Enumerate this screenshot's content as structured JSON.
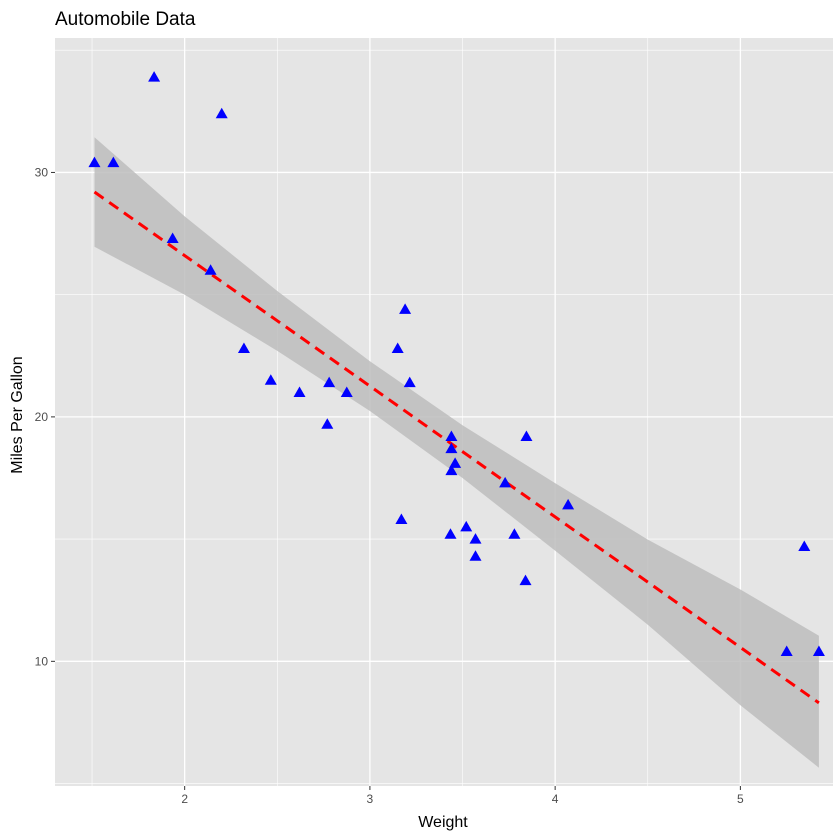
{
  "chart_data": {
    "type": "scatter",
    "title": "Automobile Data",
    "xlabel": "Weight",
    "ylabel": "Miles Per Gallon",
    "xlim": [
      1.3,
      5.5
    ],
    "ylim": [
      4.9,
      35.5
    ],
    "x_ticks": [
      2,
      3,
      4,
      5
    ],
    "x_tick_labels": [
      "2",
      "3",
      "4",
      "5"
    ],
    "y_ticks": [
      10,
      20,
      30
    ],
    "y_tick_labels": [
      "10",
      "20",
      "30"
    ],
    "grid": true,
    "legend": "none",
    "marker": "triangle",
    "colors": {
      "panel": "#e5e5e5",
      "grid": "#ffffff",
      "points": "#0000ff",
      "fit_line": "#ff0000",
      "ribbon": "#bdbdbd"
    },
    "points": [
      {
        "x": 1.513,
        "y": 30.4
      },
      {
        "x": 1.615,
        "y": 30.4
      },
      {
        "x": 1.835,
        "y": 33.9
      },
      {
        "x": 1.935,
        "y": 27.3
      },
      {
        "x": 2.14,
        "y": 26.0
      },
      {
        "x": 2.2,
        "y": 32.4
      },
      {
        "x": 2.32,
        "y": 22.8
      },
      {
        "x": 2.465,
        "y": 21.5
      },
      {
        "x": 2.62,
        "y": 21.0
      },
      {
        "x": 2.77,
        "y": 19.7
      },
      {
        "x": 2.78,
        "y": 21.4
      },
      {
        "x": 2.875,
        "y": 21.0
      },
      {
        "x": 3.15,
        "y": 22.8
      },
      {
        "x": 3.17,
        "y": 15.8
      },
      {
        "x": 3.19,
        "y": 24.4
      },
      {
        "x": 3.215,
        "y": 21.4
      },
      {
        "x": 3.435,
        "y": 15.2
      },
      {
        "x": 3.44,
        "y": 19.2
      },
      {
        "x": 3.44,
        "y": 18.7
      },
      {
        "x": 3.44,
        "y": 17.8
      },
      {
        "x": 3.46,
        "y": 18.1
      },
      {
        "x": 3.52,
        "y": 15.5
      },
      {
        "x": 3.57,
        "y": 15.0
      },
      {
        "x": 3.57,
        "y": 14.3
      },
      {
        "x": 3.73,
        "y": 17.3
      },
      {
        "x": 3.78,
        "y": 15.2
      },
      {
        "x": 3.84,
        "y": 13.3
      },
      {
        "x": 3.845,
        "y": 19.2
      },
      {
        "x": 4.07,
        "y": 16.4
      },
      {
        "x": 5.25,
        "y": 10.4
      },
      {
        "x": 5.345,
        "y": 14.7
      },
      {
        "x": 5.424,
        "y": 10.4
      }
    ],
    "fit": {
      "x": [
        1.513,
        2.0,
        2.5,
        3.0,
        3.5,
        4.0,
        4.5,
        5.0,
        5.424
      ],
      "y": [
        29.2,
        26.6,
        23.93,
        21.26,
        18.58,
        15.91,
        13.24,
        10.57,
        8.3
      ],
      "lower": [
        26.96,
        25.0,
        22.7,
        20.24,
        17.5,
        14.53,
        11.5,
        8.2,
        5.65
      ],
      "upper": [
        31.44,
        28.2,
        25.15,
        22.28,
        19.66,
        17.29,
        14.98,
        12.94,
        11.05
      ]
    }
  }
}
